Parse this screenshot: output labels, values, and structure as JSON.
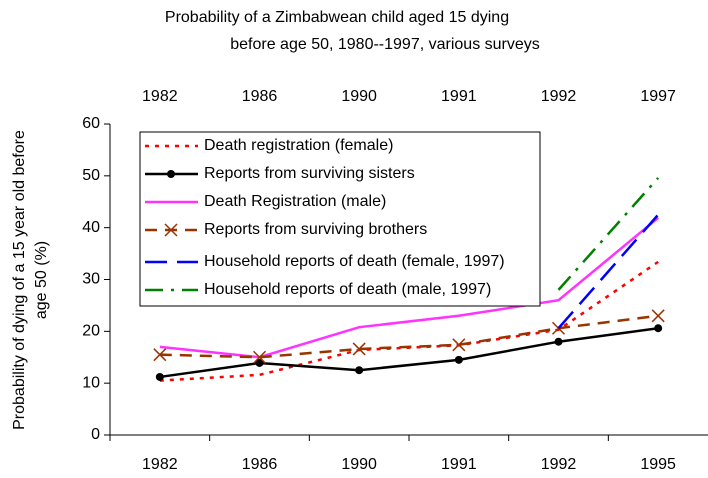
{
  "chart_data": {
    "type": "line",
    "title": [
      "Probability of a Zimbabwean child aged 15 dying",
      "before age 50, 1980--1997, various surveys"
    ],
    "y_label": [
      "Probability of dying of a 15 year old before",
      "age 50 (%)"
    ],
    "categories": [
      "1982",
      "1986",
      "1990",
      "1991",
      "1992",
      "1995"
    ],
    "x2_categories": [
      "1982",
      "1986",
      "1990",
      "1991",
      "1992",
      "1997"
    ],
    "ylim": [
      0,
      60
    ],
    "yticks": [
      0,
      10,
      20,
      30,
      40,
      50,
      60
    ],
    "legend": "upper left",
    "series": [
      {
        "name": "Death registration (female)",
        "color": "#ff0000",
        "dash": "dotted",
        "marker": "none",
        "values": [
          10.5,
          11.6,
          16.4,
          17.3,
          20.3,
          33.4
        ]
      },
      {
        "name": "Reports from surviving sisters",
        "color": "#000000",
        "dash": "solid",
        "marker": "dot",
        "values": [
          11.2,
          13.9,
          12.5,
          14.5,
          18,
          20.6
        ]
      },
      {
        "name": "Death Registration (male)",
        "color": "#ff33ff",
        "dash": "solid",
        "marker": "none",
        "values": [
          17,
          15,
          20.8,
          23,
          26,
          41.9
        ]
      },
      {
        "name": "Reports from surviving brothers",
        "color": "#993300",
        "dash": "dashed",
        "marker": "x",
        "values": [
          15.5,
          15,
          16.6,
          17.4,
          20.6,
          23
        ]
      },
      {
        "name": "Household reports of death (female, 1997)",
        "color": "#0000ff",
        "dash": "longdash",
        "marker": "none",
        "values": [
          null,
          null,
          null,
          null,
          20.6,
          42.5
        ]
      },
      {
        "name": "Household reports of death (male, 1997)",
        "color": "#008000",
        "dash": "dashdot",
        "marker": "none",
        "values": [
          null,
          null,
          null,
          null,
          28,
          49.6
        ]
      }
    ]
  }
}
